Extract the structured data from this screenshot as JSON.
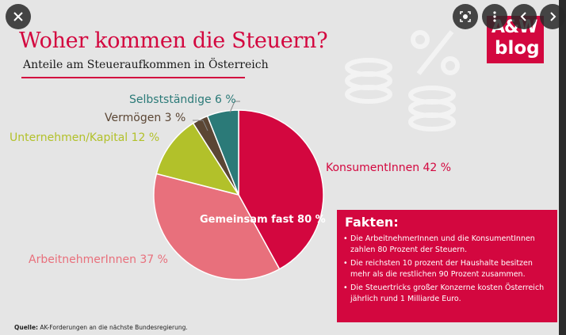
{
  "viewer": {
    "close_icon": "close-icon",
    "lens_icon": "lens-icon",
    "more_icon": "more-vert-icon",
    "prev_icon": "chevron-left-icon",
    "next_icon": "chevron-right-icon"
  },
  "infographic": {
    "title": "Woher kommen die Steuern?",
    "subtitle": "Anteile am Steueraufkommen in Österreich",
    "logo_line1": "A&W",
    "logo_line2": "blog",
    "center_label": "Gemeinsam fast 80 %",
    "facts_title": "Fakten:",
    "facts": [
      "Die ArbeitnehmerInnen und die KonsumentInnen zahlen 80 Prozent der Steuern.",
      "Die reichsten 10 prozent der Haushalte besitzen mehr als die restlichen 90 Prozent zusammen.",
      "Die Steuertricks großer Konzerne kosten Österreich jährlich rund 1 Milliarde Euro."
    ],
    "source_bold": "Quelle:",
    "source_text": " AK-Forderungen an die nächste Bundesregierung."
  },
  "chart_data": {
    "type": "pie",
    "title": "Woher kommen die Steuern?",
    "subtitle": "Anteile am Steueraufkommen in Österreich",
    "slices": [
      {
        "label": "KonsumentInnen 42 %",
        "value": 42,
        "color": "#d3073f"
      },
      {
        "label": "ArbeitnehmerInnen 37 %",
        "value": 37,
        "color": "#e8707c"
      },
      {
        "label": "Unternehmen/Kapital 12 %",
        "value": 12,
        "color": "#b2c12a"
      },
      {
        "label": "Vermögen 3 %",
        "value": 3,
        "color": "#5b4634"
      },
      {
        "label": "Selbstständige 6 %",
        "value": 6,
        "color": "#2b7a78"
      }
    ],
    "annotation": "Gemeinsam fast 80 %"
  },
  "colors": {
    "accent": "#d3073f",
    "background": "#e5e5e5"
  }
}
